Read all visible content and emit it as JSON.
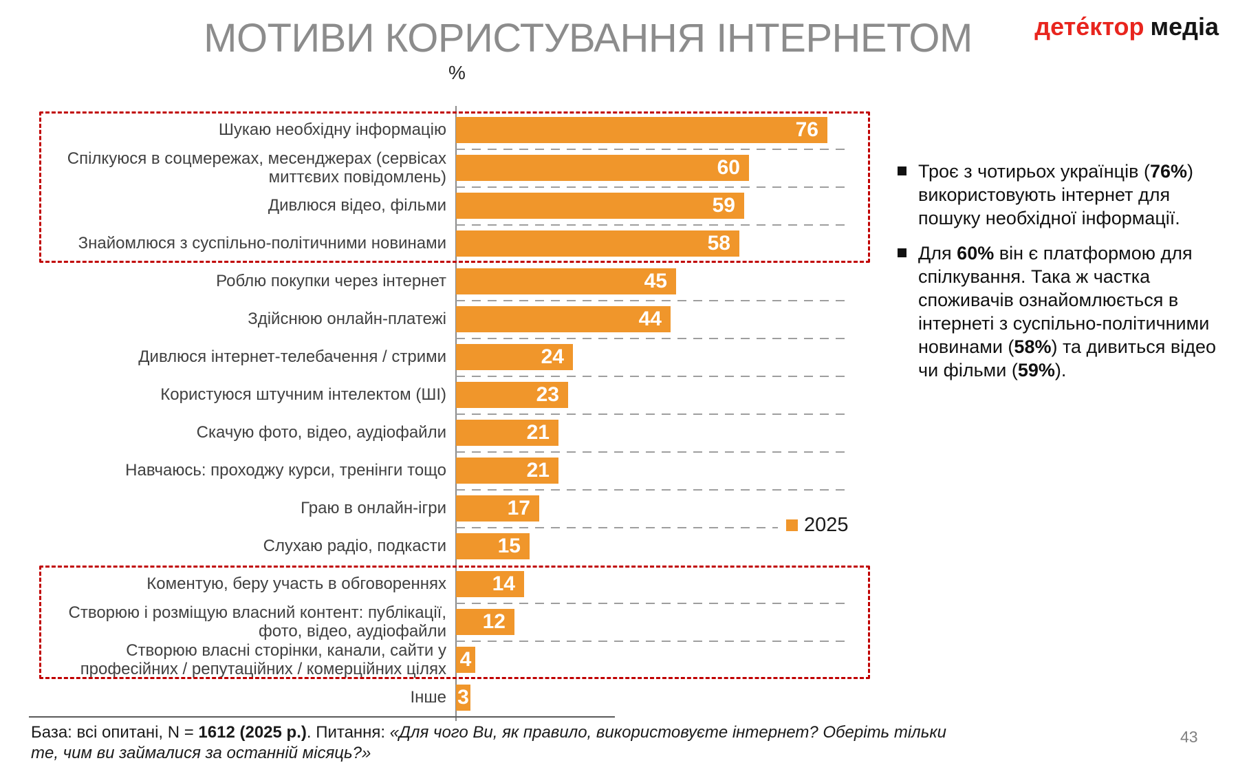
{
  "slide": {
    "title": "МОТИВИ КОРИСТУВАННЯ ІНТЕРНЕТОМ",
    "unit_label": "%",
    "page_number": "43"
  },
  "logo": {
    "text_red": "дете́ктор",
    "text_black": "медіа",
    "red_color": "#E8251E"
  },
  "chart_data": {
    "type": "bar",
    "orientation": "horizontal",
    "bar_color": "#F0962B",
    "xlim": [
      0,
      80
    ],
    "grid": "dashed-row-separators",
    "legend": {
      "label": "2025",
      "position": "right-middle",
      "swatch_color": "#F0962B"
    },
    "categories": [
      "Шукаю необхідну інформацію",
      "Спілкуюся в соцмережах, месенджерах (сервісах миттєвих повідомлень)",
      "Дивлюся відео, фільми",
      "Знайомлюся з суспільно-політичними новинами",
      "Роблю покупки через інтернет",
      "Здійснюю онлайн-платежі",
      "Дивлюся інтернет-телебачення / стрими",
      "Користуюся штучним інтелектом (ШІ)",
      "Скачую фото, відео, аудіофайли",
      "Навчаюсь: проходжу курси, тренінги тощо",
      "Граю в онлайн-ігри",
      "Слухаю радіо, подкасти",
      "Коментую, беру участь в обговореннях",
      "Створюю і розміщую власний контент: публікації, фото, відео, аудіофайли",
      "Створюю власні сторінки, канали, сайти у професійних / репутаційних / комерційних цілях",
      "Інше"
    ],
    "values": [
      76,
      60,
      59,
      58,
      45,
      44,
      24,
      23,
      21,
      21,
      17,
      15,
      14,
      12,
      4,
      3
    ],
    "highlight_boxes": [
      {
        "first_row": 0,
        "last_row": 3,
        "color": "#C00000"
      },
      {
        "first_row": 12,
        "last_row": 14,
        "color": "#C00000"
      }
    ]
  },
  "insights": [
    {
      "segments": [
        {
          "text": "Троє з чотирьох українців ("
        },
        {
          "text": "76%",
          "bold": true
        },
        {
          "text": ") використовують інтернет для пошуку необхідної інформації."
        }
      ]
    },
    {
      "segments": [
        {
          "text": "Для "
        },
        {
          "text": "60%",
          "bold": true
        },
        {
          "text": " він є платформою для спілкування. Така ж частка споживачів ознайомлюється в інтернеті з суспільно-політичними новинами ("
        },
        {
          "text": "58%",
          "bold": true
        },
        {
          "text": ") та дивиться відео чи фільми ("
        },
        {
          "text": "59%",
          "bold": true
        },
        {
          "text": ")."
        }
      ]
    }
  ],
  "footer": {
    "segments": [
      {
        "text": "База: всі опитані, N = "
      },
      {
        "text": "1612 (2025 р.)",
        "bold": true
      },
      {
        "text": ". Питання: "
      },
      {
        "text": "«Для чого Ви, як правило, використовуєте інтернет? Оберіть тільки те, чим ви займалися за останній місяць?»",
        "italic": true
      }
    ]
  }
}
